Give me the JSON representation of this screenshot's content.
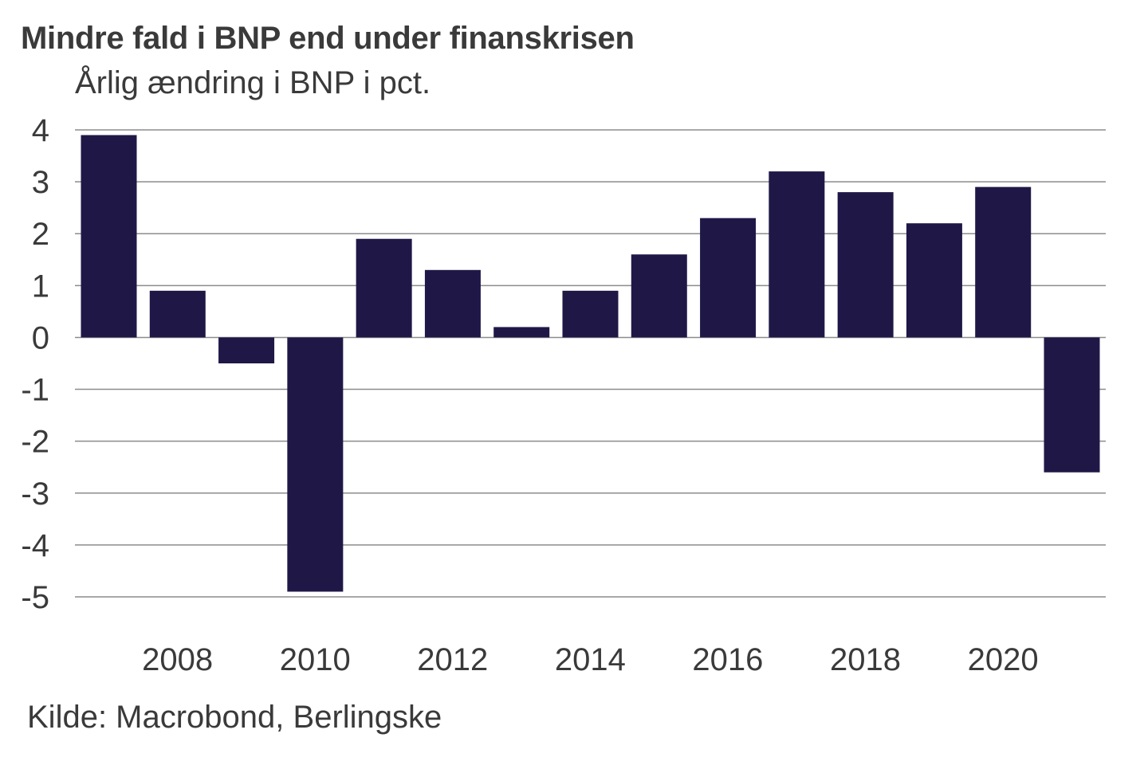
{
  "chart_data": {
    "type": "bar",
    "title": "Mindre fald i BNP end under finanskrisen",
    "subtitle": "Årlig ændring i BNP i pct.",
    "source": "Kilde: Macrobond, Berlingske",
    "xlabel": "",
    "ylabel": "",
    "categories": [
      "2007",
      "2008",
      "2009",
      "2010",
      "2011",
      "2012",
      "2013",
      "2014",
      "2015",
      "2016",
      "2017",
      "2018",
      "2019",
      "2020",
      "2021"
    ],
    "values": [
      3.9,
      0.9,
      -0.5,
      -4.9,
      1.9,
      1.3,
      0.2,
      0.9,
      1.6,
      2.3,
      3.2,
      2.8,
      2.2,
      2.9,
      -2.6
    ],
    "ylim": [
      -5,
      4
    ],
    "yticks": [
      "4",
      "3",
      "2",
      "1",
      "0",
      "-1",
      "-2",
      "-3",
      "-4",
      "-5"
    ],
    "ytick_values": [
      4,
      3,
      2,
      1,
      0,
      -1,
      -2,
      -3,
      -4,
      -5
    ],
    "xtick_labels": [
      "2008",
      "2010",
      "2012",
      "2014",
      "2016",
      "2018",
      "2020"
    ],
    "grid": true,
    "legend": "none",
    "bar_color": "#1f1847",
    "grid_color": "#8c8c8c"
  }
}
